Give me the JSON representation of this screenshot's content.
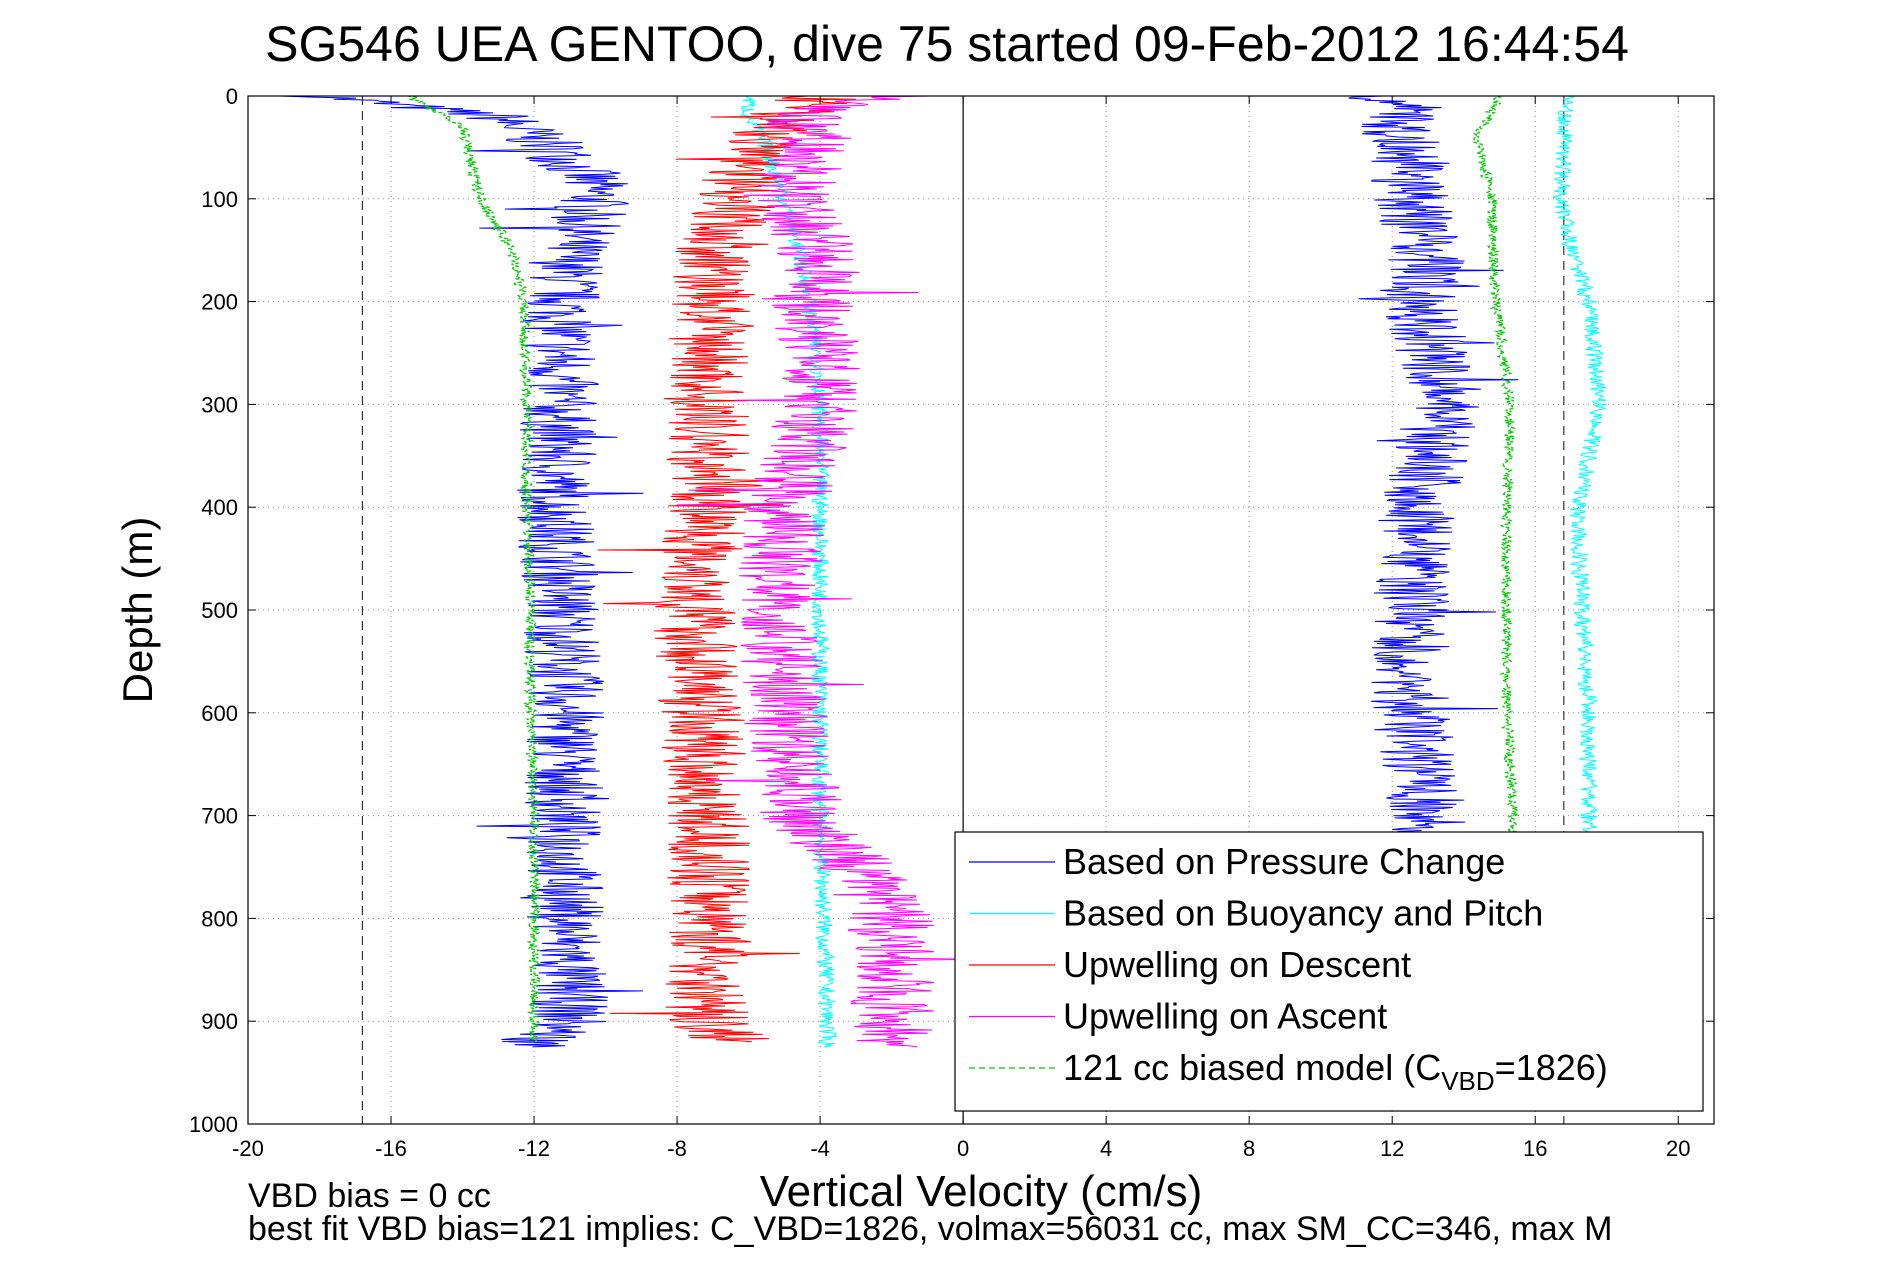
{
  "chart_data": {
    "type": "line",
    "title": "SG546 UEA GENTOO, dive 75 started 09-Feb-2012 16:44:54",
    "xlabel": "Vertical Velocity (cm/s)",
    "ylabel": "Depth (m)",
    "xlim": [
      -20,
      21
    ],
    "ylim": [
      0,
      1000
    ],
    "y_reversed": true,
    "grid": true,
    "legend_position": "bottom-right",
    "x_ticks": [
      "-20",
      "-16",
      "-12",
      "-8",
      "-4",
      "0",
      "4",
      "8",
      "12",
      "16",
      "20"
    ],
    "y_ticks": [
      "0",
      "100",
      "200",
      "300",
      "400",
      "500",
      "600",
      "700",
      "800",
      "900",
      "1000"
    ],
    "reference_lines_x": [
      -16.8,
      0,
      16.8
    ],
    "series": [
      {
        "name": "Based on Pressure Change",
        "color": "#0000ff",
        "descent": {
          "depth": [
            0,
            20,
            50,
            80,
            100,
            150,
            200,
            300,
            400,
            500,
            600,
            700,
            800,
            900,
            925
          ],
          "velocity": [
            -18,
            -13,
            -11.5,
            -10.5,
            -10.3,
            -11,
            -11.2,
            -11.3,
            -11.4,
            -11.2,
            -11.1,
            -11.2,
            -11.1,
            -11,
            -12
          ]
        },
        "ascent": {
          "depth": [
            920,
            900,
            800,
            700,
            600,
            500,
            400,
            300,
            200,
            150,
            100,
            60,
            30,
            10,
            0
          ],
          "velocity": [
            13,
            13,
            13,
            13,
            12.5,
            12.5,
            12.7,
            13.5,
            12.8,
            13,
            12.5,
            12.5,
            12,
            12.5,
            11
          ]
        }
      },
      {
        "name": "Based on Buoyancy and Pitch",
        "color": "#00ffff",
        "descent": {
          "depth": [
            0,
            20,
            50,
            100,
            150,
            200,
            250,
            300,
            400,
            500,
            600,
            700,
            800,
            900,
            925
          ],
          "velocity": [
            -6,
            -6,
            -5.5,
            -5,
            -4.6,
            -4.3,
            -4.1,
            -4,
            -4,
            -4,
            -4,
            -4,
            -3.9,
            -3.8,
            -3.8
          ]
        },
        "ascent": {
          "depth": [
            925,
            900,
            800,
            700,
            600,
            500,
            400,
            300,
            200,
            150,
            100,
            50,
            20,
            0
          ],
          "velocity": [
            17.3,
            17.3,
            17.5,
            17.5,
            17.5,
            17.3,
            17.2,
            17.8,
            17.5,
            17,
            16.7,
            16.8,
            16.8,
            16.9
          ]
        }
      },
      {
        "name": "Upwelling on Descent",
        "color": "#ff0000",
        "descent": {
          "depth": [
            0,
            20,
            60,
            100,
            150,
            200,
            300,
            400,
            500,
            600,
            700,
            800,
            900,
            920
          ],
          "velocity": [
            -4,
            -5,
            -6,
            -6.2,
            -7,
            -7,
            -7.2,
            -7.1,
            -7.5,
            -7.3,
            -7.2,
            -7,
            -7.2,
            -6.5
          ]
        }
      },
      {
        "name": "Upwelling on Ascent",
        "color": "#ff00ff",
        "ascent": {
          "depth": [
            925,
            900,
            850,
            800,
            750,
            700,
            600,
            500,
            400,
            300,
            200,
            150,
            100,
            50,
            20,
            0
          ],
          "velocity": [
            -2,
            -2,
            -2,
            -2,
            -3,
            -4.5,
            -5,
            -5.2,
            -5,
            -4,
            -4.2,
            -4,
            -5,
            -4.2,
            -4.5,
            -2
          ]
        }
      },
      {
        "name": "121 cc biased model (C",
        "name_subscript": "VBD",
        "name_suffix": "=1826)",
        "color": "#00cc00",
        "dashed": true,
        "descent": {
          "depth": [
            0,
            10,
            30,
            60,
            100,
            140,
            150,
            200,
            300,
            400,
            500,
            600,
            700,
            800,
            900,
            920
          ],
          "velocity": [
            -15.5,
            -15,
            -14,
            -13.8,
            -13.5,
            -12.8,
            -12.6,
            -12.3,
            -12.2,
            -12.2,
            -12.1,
            -12.1,
            -12,
            -12,
            -12,
            -12
          ]
        },
        "ascent": {
          "depth": [
            920,
            900,
            800,
            700,
            600,
            500,
            400,
            300,
            200,
            150,
            100,
            60,
            40,
            20,
            0
          ],
          "velocity": [
            15.2,
            15.2,
            15.3,
            15.4,
            15.2,
            15.2,
            15.2,
            15.3,
            14.9,
            14.8,
            14.8,
            14.5,
            14.4,
            14.7,
            15
          ]
        }
      }
    ],
    "footnotes": [
      "VBD bias = 0 cc",
      "best fit VBD bias=121 implies: C_VBD=1826, volmax=56031 cc, max SM_CC=346, max M"
    ]
  }
}
